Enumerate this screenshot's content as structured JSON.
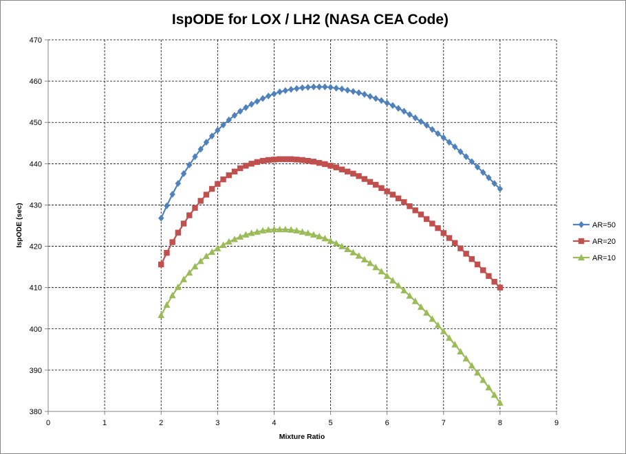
{
  "chart_data": {
    "type": "line",
    "title": "IspODE for LOX / LH2 (NASA CEA Code)",
    "xlabel": "Mixture Ratio",
    "ylabel": "IspODE (sec)",
    "xlim": [
      0,
      9
    ],
    "ylim": [
      380,
      470
    ],
    "xticks": [
      0,
      1,
      2,
      3,
      4,
      5,
      6,
      7,
      8,
      9
    ],
    "yticks": [
      380,
      390,
      400,
      410,
      420,
      430,
      440,
      450,
      460,
      470
    ],
    "grid": true,
    "legend_position": "right",
    "x": [
      2.0,
      2.1,
      2.2,
      2.3,
      2.4,
      2.5,
      2.6,
      2.7,
      2.8,
      2.9,
      3.0,
      3.1,
      3.2,
      3.3,
      3.4,
      3.5,
      3.6,
      3.7,
      3.8,
      3.9,
      4.0,
      4.1,
      4.2,
      4.3,
      4.4,
      4.5,
      4.6,
      4.7,
      4.8,
      4.9,
      5.0,
      5.1,
      5.2,
      5.3,
      5.4,
      5.5,
      5.6,
      5.7,
      5.8,
      5.9,
      6.0,
      6.1,
      6.2,
      6.3,
      6.4,
      6.5,
      6.6,
      6.7,
      6.8,
      6.9,
      7.0,
      7.1,
      7.2,
      7.3,
      7.4,
      7.5,
      7.6,
      7.7,
      7.8,
      7.9,
      8.0
    ],
    "series": [
      {
        "name": "AR=50",
        "color": "#4f81bd",
        "marker": "diamond",
        "values": [
          426.8,
          429.8,
          432.6,
          435.2,
          437.6,
          439.7,
          441.7,
          443.5,
          445.2,
          446.7,
          448.1,
          449.4,
          450.6,
          451.7,
          452.7,
          453.6,
          454.4,
          455.1,
          455.8,
          456.4,
          456.9,
          457.4,
          457.7,
          458.0,
          458.2,
          458.4,
          458.5,
          458.6,
          458.6,
          458.6,
          458.5,
          458.3,
          458.1,
          457.8,
          457.5,
          457.2,
          456.8,
          456.3,
          455.8,
          455.3,
          454.7,
          454.1,
          453.4,
          452.7,
          451.9,
          451.1,
          450.2,
          449.3,
          448.3,
          447.3,
          446.3,
          445.2,
          444.1,
          442.9,
          441.7,
          440.5,
          439.2,
          437.9,
          436.6,
          435.2,
          433.9
        ]
      },
      {
        "name": "AR=20",
        "color": "#c0504d",
        "marker": "square",
        "values": [
          415.6,
          418.4,
          421.0,
          423.3,
          425.5,
          427.5,
          429.3,
          431.0,
          432.5,
          433.9,
          435.1,
          436.2,
          437.2,
          438.1,
          438.9,
          439.5,
          440.0,
          440.4,
          440.7,
          440.9,
          441.0,
          441.1,
          441.1,
          441.1,
          441.0,
          440.9,
          440.7,
          440.5,
          440.2,
          439.9,
          439.5,
          439.1,
          438.6,
          438.1,
          437.6,
          437.0,
          436.3,
          435.6,
          434.9,
          434.1,
          433.3,
          432.5,
          431.6,
          430.7,
          429.7,
          428.7,
          427.7,
          426.6,
          425.5,
          424.4,
          423.2,
          422.0,
          420.8,
          419.5,
          418.2,
          416.9,
          415.6,
          414.2,
          412.8,
          411.4,
          410.0
        ]
      },
      {
        "name": "AR=10",
        "color": "#9bbb59",
        "marker": "triangle",
        "values": [
          403.3,
          405.8,
          408.1,
          410.1,
          412.0,
          413.6,
          415.1,
          416.4,
          417.6,
          418.6,
          419.5,
          420.3,
          421.1,
          421.7,
          422.3,
          422.8,
          423.2,
          423.5,
          423.8,
          424.0,
          424.1,
          424.1,
          424.1,
          424.0,
          423.8,
          423.5,
          423.2,
          422.8,
          422.4,
          421.9,
          421.3,
          420.7,
          420.0,
          419.3,
          418.5,
          417.7,
          416.8,
          415.9,
          414.9,
          413.9,
          412.8,
          411.7,
          410.5,
          409.3,
          408.0,
          406.7,
          405.3,
          403.9,
          402.4,
          400.9,
          399.4,
          397.8,
          396.2,
          394.5,
          392.8,
          391.1,
          389.4,
          387.6,
          385.8,
          384.0,
          382.1
        ]
      }
    ]
  }
}
